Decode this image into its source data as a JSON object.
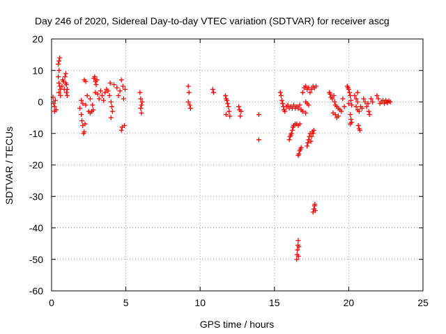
{
  "chart_data": {
    "type": "scatter",
    "title": "Day 246 of 2020, Sidereal Day-to-day VTEC variation (SDTVAR) for receiver ascg",
    "xlabel": "GPS time / hours",
    "ylabel": "SDTVAR / TECUs",
    "xlim": [
      0,
      25
    ],
    "ylim": [
      -60,
      20
    ],
    "xticks": [
      0,
      5,
      10,
      15,
      20,
      25
    ],
    "yticks": [
      -60,
      -50,
      -40,
      -30,
      -20,
      -10,
      0,
      10,
      20
    ],
    "xtick_labels": [
      "0",
      "5",
      "10",
      "15",
      "20",
      "25"
    ],
    "ytick_labels": [
      "-60",
      "-50",
      "-40",
      "-30",
      "-20",
      "-10",
      "0",
      "10",
      "20"
    ],
    "grid": true,
    "marker": "+",
    "color": "#ff0000",
    "series": [
      {
        "name": "SDTVAR",
        "points": [
          [
            0.1,
            1.5
          ],
          [
            0.15,
            -0.5
          ],
          [
            0.2,
            -1.5
          ],
          [
            0.25,
            0.5
          ],
          [
            0.3,
            -2.5
          ],
          [
            0.2,
            -3
          ],
          [
            0.45,
            12
          ],
          [
            0.5,
            13
          ],
          [
            0.55,
            14
          ],
          [
            0.5,
            10
          ],
          [
            0.45,
            8
          ],
          [
            0.5,
            6
          ],
          [
            0.55,
            5
          ],
          [
            0.6,
            4
          ],
          [
            0.5,
            3
          ],
          [
            0.6,
            2
          ],
          [
            0.7,
            5
          ],
          [
            0.75,
            7
          ],
          [
            0.8,
            6.5
          ],
          [
            0.85,
            4
          ],
          [
            0.9,
            8
          ],
          [
            0.95,
            6
          ],
          [
            1.0,
            5.5
          ],
          [
            1.05,
            4
          ],
          [
            1.0,
            3
          ],
          [
            1.05,
            2
          ],
          [
            0.95,
            9
          ],
          [
            1.9,
            -2
          ],
          [
            2.0,
            -4
          ],
          [
            2.05,
            -6
          ],
          [
            2.1,
            -7.5
          ],
          [
            2.15,
            -10
          ],
          [
            2.2,
            -9.5
          ],
          [
            2.25,
            -7
          ],
          [
            2.0,
            0.5
          ],
          [
            2.1,
            -0.5
          ],
          [
            2.3,
            -1
          ],
          [
            2.2,
            7
          ],
          [
            2.3,
            6.5
          ],
          [
            2.4,
            2
          ],
          [
            2.5,
            -3
          ],
          [
            2.6,
            -3.5
          ],
          [
            2.7,
            -3
          ],
          [
            2.8,
            -2.5
          ],
          [
            2.6,
            1
          ],
          [
            2.75,
            -1
          ],
          [
            2.85,
            7.5
          ],
          [
            2.9,
            8
          ],
          [
            2.95,
            6.5
          ],
          [
            3.0,
            5.5
          ],
          [
            3.05,
            7
          ],
          [
            2.95,
            3
          ],
          [
            3.1,
            2.5
          ],
          [
            3.2,
            1
          ],
          [
            3.3,
            3.5
          ],
          [
            3.4,
            2
          ],
          [
            3.5,
            0.5
          ],
          [
            3.6,
            3
          ],
          [
            3.7,
            4
          ],
          [
            3.8,
            3.5
          ],
          [
            3.9,
            2
          ],
          [
            4.0,
            0
          ],
          [
            4.05,
            -1.5
          ],
          [
            4.1,
            -3
          ],
          [
            4.0,
            -5
          ],
          [
            3.95,
            6
          ],
          [
            4.2,
            5.5
          ],
          [
            4.4,
            4.5
          ],
          [
            4.5,
            2
          ],
          [
            4.6,
            3.5
          ],
          [
            4.7,
            -9
          ],
          [
            4.75,
            -8
          ],
          [
            4.8,
            5
          ],
          [
            4.85,
            1
          ],
          [
            4.9,
            -7.5
          ],
          [
            4.95,
            4
          ],
          [
            4.7,
            7
          ],
          [
            5.95,
            3
          ],
          [
            6.0,
            1
          ],
          [
            6.05,
            -1
          ],
          [
            6.0,
            -2
          ],
          [
            6.05,
            -3.5
          ],
          [
            6.1,
            0
          ],
          [
            9.2,
            5
          ],
          [
            9.25,
            3
          ],
          [
            9.2,
            0
          ],
          [
            9.3,
            -1
          ],
          [
            9.35,
            -2
          ],
          [
            10.85,
            4
          ],
          [
            10.9,
            3
          ],
          [
            11.7,
            2
          ],
          [
            11.75,
            1
          ],
          [
            11.8,
            0.5
          ],
          [
            11.85,
            -0.5
          ],
          [
            11.9,
            -1.5
          ],
          [
            11.95,
            -3
          ],
          [
            12.0,
            -4.5
          ],
          [
            11.75,
            -4
          ],
          [
            12.6,
            -1.5
          ],
          [
            12.65,
            -2.5
          ],
          [
            12.7,
            -4.5
          ],
          [
            12.75,
            -3
          ],
          [
            13.95,
            -4
          ],
          [
            13.95,
            -12
          ],
          [
            15.4,
            3
          ],
          [
            15.45,
            2
          ],
          [
            15.5,
            0.5
          ],
          [
            15.55,
            -0.5
          ],
          [
            15.6,
            -1.5
          ],
          [
            15.65,
            -2.5
          ],
          [
            15.7,
            -3
          ],
          [
            15.8,
            -1.5
          ],
          [
            15.9,
            -1
          ],
          [
            16.0,
            -2
          ],
          [
            16.1,
            -1.5
          ],
          [
            16.2,
            -2
          ],
          [
            16.3,
            -1
          ],
          [
            16.4,
            -2
          ],
          [
            16.5,
            -1.5
          ],
          [
            16.6,
            -2
          ],
          [
            16.7,
            -1
          ],
          [
            16.8,
            -2.5
          ],
          [
            16.9,
            -3
          ],
          [
            16.0,
            -12
          ],
          [
            16.05,
            -11
          ],
          [
            16.1,
            -10.5
          ],
          [
            16.15,
            -10
          ],
          [
            16.2,
            -9
          ],
          [
            16.25,
            -8
          ],
          [
            16.3,
            -7.5
          ],
          [
            16.4,
            -7
          ],
          [
            16.5,
            -7
          ],
          [
            16.6,
            -7.5
          ],
          [
            16.7,
            -7
          ],
          [
            16.5,
            -50
          ],
          [
            16.52,
            -48.5
          ],
          [
            16.55,
            -47
          ],
          [
            16.58,
            -45.5
          ],
          [
            16.6,
            -44
          ],
          [
            16.62,
            -49
          ],
          [
            16.65,
            -46
          ],
          [
            16.6,
            -17
          ],
          [
            16.65,
            -16.5
          ],
          [
            16.7,
            -15.5
          ],
          [
            16.75,
            -15
          ],
          [
            16.8,
            -14.5
          ],
          [
            16.9,
            3
          ],
          [
            17.0,
            4.5
          ],
          [
            17.1,
            5
          ],
          [
            17.2,
            4
          ],
          [
            17.3,
            4.5
          ],
          [
            17.4,
            3
          ],
          [
            17.5,
            4
          ],
          [
            17.6,
            5
          ],
          [
            17.7,
            4.5
          ],
          [
            17.8,
            5
          ],
          [
            17.1,
            0
          ],
          [
            17.2,
            -0.5
          ],
          [
            17.3,
            -1
          ],
          [
            17.1,
            -3.5
          ],
          [
            17.2,
            -14
          ],
          [
            17.25,
            -13
          ],
          [
            17.3,
            -12
          ],
          [
            17.35,
            -11
          ],
          [
            17.4,
            -10
          ],
          [
            17.45,
            -12.5
          ],
          [
            17.5,
            -11
          ],
          [
            17.55,
            -9.5
          ],
          [
            17.6,
            -10
          ],
          [
            17.65,
            -9
          ],
          [
            17.6,
            -35
          ],
          [
            17.65,
            -34
          ],
          [
            17.7,
            -33
          ],
          [
            17.72,
            -32.5
          ],
          [
            17.75,
            -34.5
          ],
          [
            18.7,
            3
          ],
          [
            18.75,
            2.5
          ],
          [
            18.8,
            1.5
          ],
          [
            18.9,
            1
          ],
          [
            19.0,
            2
          ],
          [
            19.05,
            0
          ],
          [
            19.1,
            -1
          ],
          [
            18.95,
            -3.5
          ],
          [
            19.1,
            -4
          ],
          [
            19.2,
            -5
          ],
          [
            19.3,
            -4.5
          ],
          [
            19.2,
            -1.5
          ],
          [
            19.3,
            -2
          ],
          [
            19.4,
            -2.5
          ],
          [
            19.5,
            -3
          ],
          [
            19.6,
            1
          ],
          [
            19.7,
            -1.5
          ],
          [
            19.9,
            5
          ],
          [
            19.95,
            4.5
          ],
          [
            20.0,
            4
          ],
          [
            20.05,
            3
          ],
          [
            20.1,
            2
          ],
          [
            20.15,
            0.5
          ],
          [
            20.0,
            -0.5
          ],
          [
            20.2,
            -1
          ],
          [
            20.1,
            -4
          ],
          [
            20.15,
            -5.5
          ],
          [
            20.2,
            -6.5
          ],
          [
            20.1,
            -7
          ],
          [
            20.4,
            2
          ],
          [
            20.5,
            1
          ],
          [
            20.6,
            0
          ],
          [
            20.5,
            -1.5
          ],
          [
            20.6,
            -2.5
          ],
          [
            20.7,
            -3
          ],
          [
            20.65,
            -7.5
          ],
          [
            20.7,
            -8.5
          ],
          [
            20.75,
            -9
          ],
          [
            20.6,
            3
          ],
          [
            20.8,
            -1.5
          ],
          [
            20.9,
            -2
          ],
          [
            21.0,
            1
          ],
          [
            21.1,
            0
          ],
          [
            21.2,
            -1.5
          ],
          [
            21.3,
            -0.5
          ],
          [
            21.35,
            -3
          ],
          [
            21.4,
            -4
          ],
          [
            21.5,
            1
          ],
          [
            21.6,
            0
          ],
          [
            21.9,
            2
          ],
          [
            22.0,
            1
          ],
          [
            22.1,
            -0.5
          ],
          [
            22.2,
            0
          ],
          [
            22.3,
            0.5
          ],
          [
            22.4,
            0
          ],
          [
            22.5,
            0.5
          ],
          [
            22.6,
            0
          ],
          [
            22.7,
            0.3
          ],
          [
            22.8,
            0
          ],
          [
            22.4,
            -0.5
          ],
          [
            22.6,
            -0.3
          ]
        ]
      }
    ]
  }
}
